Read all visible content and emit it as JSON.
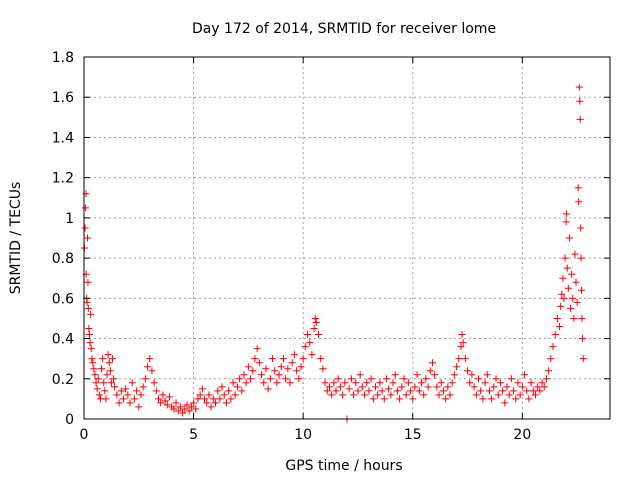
{
  "chart_data": {
    "type": "scatter",
    "title": "Day 172 of 2014, SRMTID for receiver lome",
    "xlabel": "GPS time / hours",
    "ylabel": "SRMTID / TECUs",
    "xlim": [
      0,
      24
    ],
    "ylim": [
      0,
      1.8
    ],
    "xticks": [
      0,
      5,
      10,
      15,
      20
    ],
    "yticks": [
      0,
      0.2,
      0.4,
      0.6,
      0.8,
      1,
      1.2,
      1.4,
      1.6,
      1.8
    ],
    "xtick_labels": [
      "0",
      "5",
      "10",
      "15",
      "20"
    ],
    "ytick_labels": [
      "0",
      "0.2",
      "0.4",
      "0.6",
      "0.8",
      "1",
      "1.2",
      "1.4",
      "1.6",
      "1.8"
    ],
    "grid": true,
    "marker": "+",
    "color": "#ff0000",
    "series": [
      {
        "points": [
          [
            0.02,
            0.85
          ],
          [
            0.05,
            0.95
          ],
          [
            0.07,
            1.05
          ],
          [
            0.09,
            1.12
          ],
          [
            0.1,
            0.72
          ],
          [
            0.12,
            0.6
          ],
          [
            0.14,
            0.58
          ],
          [
            0.16,
            0.9
          ],
          [
            0.18,
            0.68
          ],
          [
            0.2,
            0.55
          ],
          [
            0.22,
            0.45
          ],
          [
            0.25,
            0.42
          ],
          [
            0.28,
            0.38
          ],
          [
            0.3,
            0.52
          ],
          [
            0.33,
            0.35
          ],
          [
            0.36,
            0.3
          ],
          [
            0.4,
            0.28
          ],
          [
            0.45,
            0.25
          ],
          [
            0.5,
            0.22
          ],
          [
            0.55,
            0.18
          ],
          [
            0.6,
            0.15
          ],
          [
            0.65,
            0.2
          ],
          [
            0.7,
            0.12
          ],
          [
            0.75,
            0.1
          ],
          [
            0.8,
            0.25
          ],
          [
            0.85,
            0.3
          ],
          [
            0.9,
            0.18
          ],
          [
            0.95,
            0.14
          ],
          [
            1.0,
            0.1
          ],
          [
            1.05,
            0.22
          ],
          [
            1.1,
            0.32
          ],
          [
            1.15,
            0.28
          ],
          [
            1.2,
            0.24
          ],
          [
            1.25,
            0.18
          ],
          [
            1.3,
            0.3
          ],
          [
            1.35,
            0.2
          ],
          [
            1.4,
            0.16
          ],
          [
            1.5,
            0.12
          ],
          [
            1.6,
            0.08
          ],
          [
            1.7,
            0.14
          ],
          [
            1.8,
            0.1
          ],
          [
            1.9,
            0.15
          ],
          [
            2.0,
            0.12
          ],
          [
            2.1,
            0.08
          ],
          [
            2.2,
            0.18
          ],
          [
            2.3,
            0.1
          ],
          [
            2.4,
            0.14
          ],
          [
            2.5,
            0.06
          ],
          [
            2.6,
            0.12
          ],
          [
            2.7,
            0.16
          ],
          [
            2.8,
            0.2
          ],
          [
            2.9,
            0.26
          ],
          [
            3.0,
            0.3
          ],
          [
            3.1,
            0.24
          ],
          [
            3.2,
            0.18
          ],
          [
            3.3,
            0.14
          ],
          [
            3.4,
            0.1
          ],
          [
            3.5,
            0.08
          ],
          [
            3.6,
            0.12
          ],
          [
            3.7,
            0.09
          ],
          [
            3.8,
            0.07
          ],
          [
            3.9,
            0.11
          ],
          [
            4.0,
            0.06
          ],
          [
            4.1,
            0.05
          ],
          [
            4.2,
            0.08
          ],
          [
            4.3,
            0.04
          ],
          [
            4.4,
            0.06
          ],
          [
            4.5,
            0.03
          ],
          [
            4.6,
            0.05
          ],
          [
            4.7,
            0.07
          ],
          [
            4.8,
            0.04
          ],
          [
            4.9,
            0.06
          ],
          [
            5.0,
            0.08
          ],
          [
            5.1,
            0.05
          ],
          [
            5.2,
            0.1
          ],
          [
            5.3,
            0.12
          ],
          [
            5.4,
            0.15
          ],
          [
            5.5,
            0.1
          ],
          [
            5.6,
            0.08
          ],
          [
            5.7,
            0.12
          ],
          [
            5.8,
            0.06
          ],
          [
            5.9,
            0.1
          ],
          [
            6.0,
            0.08
          ],
          [
            6.1,
            0.14
          ],
          [
            6.2,
            0.1
          ],
          [
            6.3,
            0.16
          ],
          [
            6.4,
            0.12
          ],
          [
            6.5,
            0.08
          ],
          [
            6.6,
            0.14
          ],
          [
            6.7,
            0.1
          ],
          [
            6.8,
            0.18
          ],
          [
            6.9,
            0.12
          ],
          [
            7.0,
            0.16
          ],
          [
            7.1,
            0.2
          ],
          [
            7.2,
            0.14
          ],
          [
            7.3,
            0.22
          ],
          [
            7.4,
            0.18
          ],
          [
            7.5,
            0.26
          ],
          [
            7.6,
            0.2
          ],
          [
            7.7,
            0.24
          ],
          [
            7.8,
            0.3
          ],
          [
            7.9,
            0.35
          ],
          [
            8.0,
            0.28
          ],
          [
            8.1,
            0.22
          ],
          [
            8.2,
            0.18
          ],
          [
            8.3,
            0.25
          ],
          [
            8.4,
            0.15
          ],
          [
            8.5,
            0.2
          ],
          [
            8.6,
            0.3
          ],
          [
            8.7,
            0.24
          ],
          [
            8.8,
            0.18
          ],
          [
            8.9,
            0.22
          ],
          [
            9.0,
            0.26
          ],
          [
            9.1,
            0.3
          ],
          [
            9.2,
            0.2
          ],
          [
            9.3,
            0.25
          ],
          [
            9.4,
            0.18
          ],
          [
            9.5,
            0.28
          ],
          [
            9.6,
            0.32
          ],
          [
            9.7,
            0.24
          ],
          [
            9.8,
            0.2
          ],
          [
            9.9,
            0.26
          ],
          [
            10.0,
            0.3
          ],
          [
            10.1,
            0.36
          ],
          [
            10.2,
            0.42
          ],
          [
            10.3,
            0.38
          ],
          [
            10.4,
            0.32
          ],
          [
            10.5,
            0.45
          ],
          [
            10.55,
            0.5
          ],
          [
            10.6,
            0.48
          ],
          [
            10.7,
            0.42
          ],
          [
            10.8,
            0.3
          ],
          [
            10.9,
            0.25
          ],
          [
            11.0,
            0.18
          ],
          [
            11.1,
            0.14
          ],
          [
            11.2,
            0.16
          ],
          [
            11.3,
            0.12
          ],
          [
            11.4,
            0.18
          ],
          [
            11.5,
            0.14
          ],
          [
            11.6,
            0.2
          ],
          [
            11.7,
            0.16
          ],
          [
            11.8,
            0.12
          ],
          [
            11.9,
            0.18
          ],
          [
            12.0,
            0.0
          ],
          [
            12.1,
            0.15
          ],
          [
            12.2,
            0.2
          ],
          [
            12.3,
            0.12
          ],
          [
            12.4,
            0.18
          ],
          [
            12.5,
            0.14
          ],
          [
            12.6,
            0.22
          ],
          [
            12.7,
            0.16
          ],
          [
            12.8,
            0.12
          ],
          [
            12.9,
            0.18
          ],
          [
            13.0,
            0.14
          ],
          [
            13.1,
            0.2
          ],
          [
            13.2,
            0.1
          ],
          [
            13.3,
            0.16
          ],
          [
            13.4,
            0.12
          ],
          [
            13.5,
            0.18
          ],
          [
            13.6,
            0.14
          ],
          [
            13.7,
            0.1
          ],
          [
            13.8,
            0.2
          ],
          [
            13.9,
            0.15
          ],
          [
            14.0,
            0.12
          ],
          [
            14.1,
            0.18
          ],
          [
            14.2,
            0.22
          ],
          [
            14.3,
            0.14
          ],
          [
            14.4,
            0.1
          ],
          [
            14.5,
            0.16
          ],
          [
            14.6,
            0.2
          ],
          [
            14.7,
            0.12
          ],
          [
            14.8,
            0.18
          ],
          [
            14.9,
            0.14
          ],
          [
            15.0,
            0.1
          ],
          [
            15.1,
            0.16
          ],
          [
            15.2,
            0.22
          ],
          [
            15.3,
            0.14
          ],
          [
            15.4,
            0.18
          ],
          [
            15.5,
            0.12
          ],
          [
            15.6,
            0.2
          ],
          [
            15.7,
            0.16
          ],
          [
            15.8,
            0.24
          ],
          [
            15.9,
            0.28
          ],
          [
            16.0,
            0.22
          ],
          [
            16.1,
            0.16
          ],
          [
            16.2,
            0.12
          ],
          [
            16.3,
            0.18
          ],
          [
            16.4,
            0.14
          ],
          [
            16.5,
            0.1
          ],
          [
            16.6,
            0.16
          ],
          [
            16.7,
            0.12
          ],
          [
            16.8,
            0.18
          ],
          [
            16.9,
            0.22
          ],
          [
            17.0,
            0.26
          ],
          [
            17.1,
            0.3
          ],
          [
            17.2,
            0.36
          ],
          [
            17.25,
            0.42
          ],
          [
            17.3,
            0.38
          ],
          [
            17.4,
            0.3
          ],
          [
            17.5,
            0.24
          ],
          [
            17.6,
            0.18
          ],
          [
            17.7,
            0.22
          ],
          [
            17.8,
            0.16
          ],
          [
            17.9,
            0.12
          ],
          [
            18.0,
            0.2
          ],
          [
            18.1,
            0.14
          ],
          [
            18.2,
            0.1
          ],
          [
            18.3,
            0.18
          ],
          [
            18.4,
            0.22
          ],
          [
            18.5,
            0.14
          ],
          [
            18.6,
            0.1
          ],
          [
            18.7,
            0.16
          ],
          [
            18.8,
            0.2
          ],
          [
            18.9,
            0.12
          ],
          [
            19.0,
            0.18
          ],
          [
            19.1,
            0.14
          ],
          [
            19.2,
            0.08
          ],
          [
            19.3,
            0.16
          ],
          [
            19.4,
            0.12
          ],
          [
            19.5,
            0.2
          ],
          [
            19.6,
            0.14
          ],
          [
            19.7,
            0.1
          ],
          [
            19.8,
            0.18
          ],
          [
            19.9,
            0.12
          ],
          [
            20.0,
            0.16
          ],
          [
            20.1,
            0.22
          ],
          [
            20.2,
            0.14
          ],
          [
            20.3,
            0.1
          ],
          [
            20.4,
            0.18
          ],
          [
            20.5,
            0.14
          ],
          [
            20.6,
            0.12
          ],
          [
            20.7,
            0.16
          ],
          [
            20.8,
            0.14
          ],
          [
            20.9,
            0.18
          ],
          [
            21.0,
            0.16
          ],
          [
            21.1,
            0.2
          ],
          [
            21.2,
            0.24
          ],
          [
            21.3,
            0.3
          ],
          [
            21.4,
            0.36
          ],
          [
            21.5,
            0.42
          ],
          [
            21.6,
            0.5
          ],
          [
            21.7,
            0.46
          ],
          [
            21.75,
            0.56
          ],
          [
            21.8,
            0.62
          ],
          [
            21.85,
            0.7
          ],
          [
            21.9,
            0.6
          ],
          [
            21.95,
            0.8
          ],
          [
            22.0,
            0.98
          ],
          [
            22.02,
            1.02
          ],
          [
            22.05,
            0.75
          ],
          [
            22.1,
            0.65
          ],
          [
            22.15,
            0.9
          ],
          [
            22.2,
            0.55
          ],
          [
            22.25,
            0.72
          ],
          [
            22.3,
            0.6
          ],
          [
            22.35,
            0.5
          ],
          [
            22.4,
            0.82
          ],
          [
            22.45,
            0.68
          ],
          [
            22.5,
            0.58
          ],
          [
            22.55,
            1.15
          ],
          [
            22.57,
            1.08
          ],
          [
            22.6,
            1.65
          ],
          [
            22.62,
            1.58
          ],
          [
            22.64,
            1.49
          ],
          [
            22.66,
            0.95
          ],
          [
            22.68,
            0.8
          ],
          [
            22.7,
            0.64
          ],
          [
            22.72,
            0.5
          ],
          [
            22.75,
            0.4
          ],
          [
            22.78,
            0.3
          ]
        ]
      }
    ]
  }
}
